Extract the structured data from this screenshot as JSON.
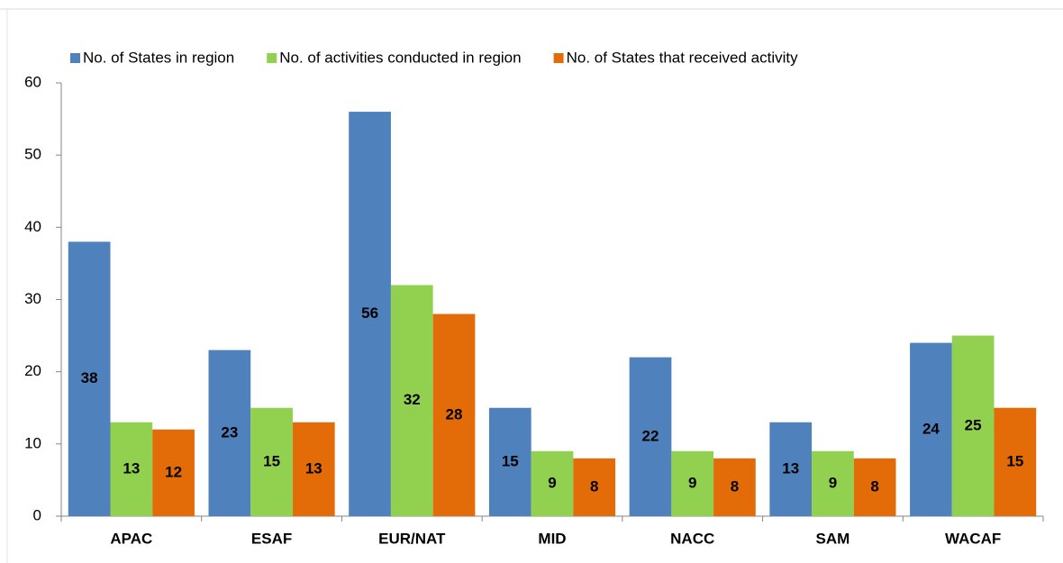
{
  "chart_data": {
    "type": "bar",
    "categories": [
      "APAC",
      "ESAF",
      "EUR/NAT",
      "MID",
      "NACC",
      "SAM",
      "WACAF"
    ],
    "series": [
      {
        "name": "No. of States in region",
        "color": "#4f81bd",
        "values": [
          38,
          23,
          56,
          15,
          22,
          13,
          24
        ]
      },
      {
        "name": "No. of activities conducted in region",
        "color": "#92d050",
        "values": [
          13,
          15,
          32,
          9,
          9,
          9,
          25
        ]
      },
      {
        "name": "No. of States that received activity",
        "color": "#e36c09",
        "values": [
          12,
          13,
          28,
          8,
          8,
          8,
          15
        ]
      }
    ],
    "ylim": [
      0,
      60
    ],
    "yticks": [
      0,
      10,
      20,
      30,
      40,
      50,
      60
    ],
    "grid": false,
    "legend": "top"
  }
}
